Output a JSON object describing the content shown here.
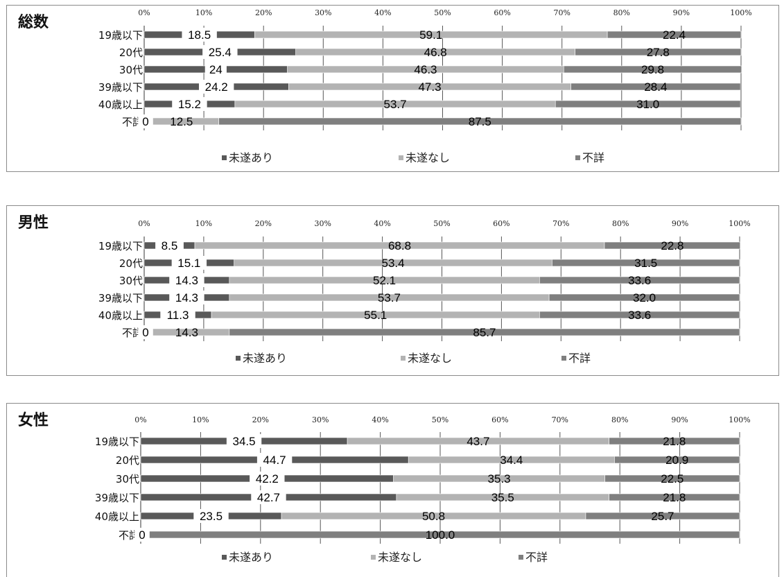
{
  "legend": [
    "未遂あり",
    "未遂なし",
    "不詳"
  ],
  "colors": {
    "未遂あり": "#595959",
    "未遂なし": "#b3b3b3",
    "不詳": "#7f7f7f",
    "label_bg": "#ffffff"
  },
  "tick_labels": [
    "0%",
    "10%",
    "20%",
    "30%",
    "40%",
    "50%",
    "60%",
    "70%",
    "80%",
    "90%",
    "100%"
  ],
  "chart_data": [
    {
      "type": "bar",
      "orientation": "horizontal",
      "stacked": "percent",
      "title": "総数",
      "categories": [
        "19歳以下",
        "20代",
        "30代",
        "39歳以下",
        "40歳以上",
        "不詳"
      ],
      "series": [
        {
          "name": "未遂あり",
          "values": [
            18.5,
            25.4,
            24,
            24.2,
            15.2,
            0
          ],
          "labels": [
            "18.5",
            "25.4",
            "24",
            "24.2",
            "15.2",
            "0"
          ]
        },
        {
          "name": "未遂なし",
          "values": [
            59.1,
            46.8,
            46.3,
            47.3,
            53.7,
            12.5
          ],
          "labels": [
            "59.1",
            "46.8",
            "46.3",
            "47.3",
            "53.7",
            "12.5"
          ]
        },
        {
          "name": "不詳",
          "values": [
            22.4,
            27.8,
            29.8,
            28.4,
            31.0,
            87.5
          ],
          "labels": [
            "22.4",
            "27.8",
            "29.8",
            "28.4",
            "31.0",
            "87.5"
          ]
        }
      ],
      "xlim": [
        0,
        100
      ],
      "grid": true,
      "legend_position": "bottom"
    },
    {
      "type": "bar",
      "orientation": "horizontal",
      "stacked": "percent",
      "title": "男性",
      "categories": [
        "19歳以下",
        "20代",
        "30代",
        "39歳以下",
        "40歳以上",
        "不詳"
      ],
      "series": [
        {
          "name": "未遂あり",
          "values": [
            8.5,
            15.1,
            14.3,
            14.3,
            11.3,
            0
          ],
          "labels": [
            "8.5",
            "15.1",
            "14.3",
            "14.3",
            "11.3",
            "0"
          ]
        },
        {
          "name": "未遂なし",
          "values": [
            68.8,
            53.4,
            52.1,
            53.7,
            55.1,
            14.3
          ],
          "labels": [
            "68.8",
            "53.4",
            "52.1",
            "53.7",
            "55.1",
            "14.3"
          ]
        },
        {
          "name": "不詳",
          "values": [
            22.8,
            31.5,
            33.6,
            32.0,
            33.6,
            85.7
          ],
          "labels": [
            "22.8",
            "31.5",
            "33.6",
            "32.0",
            "33.6",
            "85.7"
          ]
        }
      ],
      "xlim": [
        0,
        100
      ],
      "grid": true,
      "legend_position": "bottom"
    },
    {
      "type": "bar",
      "orientation": "horizontal",
      "stacked": "percent",
      "title": "女性",
      "categories": [
        "19歳以下",
        "20代",
        "30代",
        "39歳以下",
        "40歳以上",
        "不詳"
      ],
      "series": [
        {
          "name": "未遂あり",
          "values": [
            34.5,
            44.7,
            42.2,
            42.7,
            23.5,
            0
          ],
          "labels": [
            "34.5",
            "44.7",
            "42.2",
            "42.7",
            "23.5",
            "0"
          ]
        },
        {
          "name": "未遂なし",
          "values": [
            43.7,
            34.4,
            35.3,
            35.5,
            50.8,
            0
          ],
          "labels": [
            "43.7",
            "34.4",
            "35.3",
            "35.5",
            "50.8",
            ""
          ]
        },
        {
          "name": "不詳",
          "values": [
            21.8,
            20.9,
            22.5,
            21.8,
            25.7,
            100.0
          ],
          "labels": [
            "21.8",
            "20.9",
            "22.5",
            "21.8",
            "25.7",
            "100.0"
          ]
        }
      ],
      "xlim": [
        0,
        100
      ],
      "grid": true,
      "legend_position": "bottom"
    }
  ]
}
